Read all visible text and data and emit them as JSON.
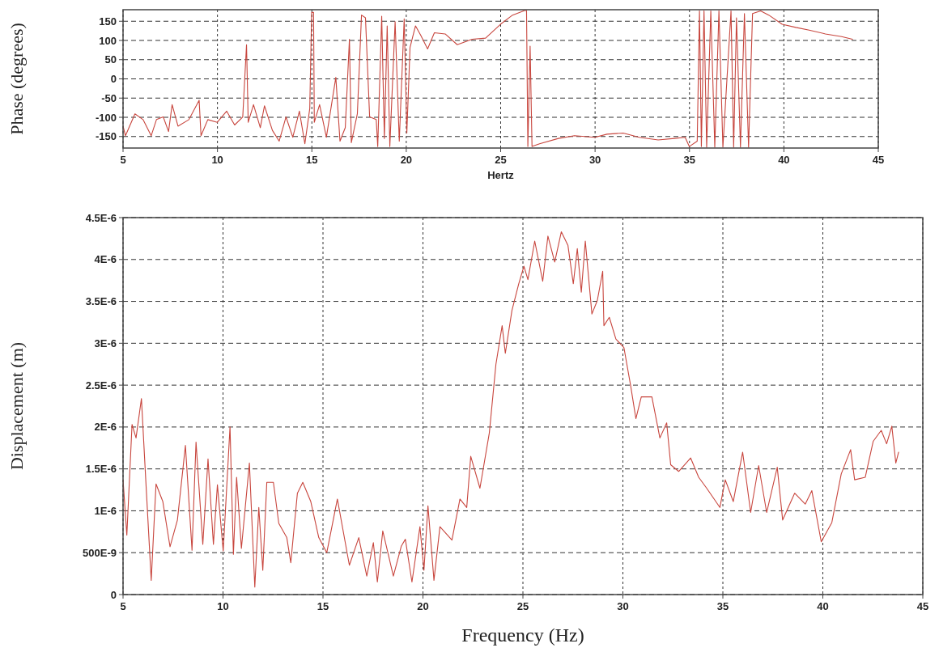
{
  "chart_data": [
    {
      "type": "line",
      "xlabel": "Hertz",
      "ylabel": "Phase (degrees)",
      "xlim": [
        5,
        45
      ],
      "ylim": [
        -180,
        180
      ],
      "xticks": [
        5,
        10,
        15,
        20,
        25,
        30,
        35,
        40,
        45
      ],
      "yticks": [
        -150,
        -100,
        -50,
        0,
        50,
        100,
        150
      ],
      "grid": true,
      "x": [
        5.0,
        5.13,
        5.63,
        6.06,
        6.49,
        6.77,
        7.13,
        7.41,
        7.6,
        7.91,
        8.49,
        9.03,
        9.13,
        9.49,
        9.99,
        10.49,
        10.91,
        11.34,
        11.54,
        11.63,
        11.91,
        12.27,
        12.49,
        12.91,
        13.27,
        13.63,
        13.99,
        14.34,
        14.63,
        14.89,
        14.99,
        15.09,
        15.13,
        15.41,
        15.77,
        16.27,
        16.49,
        16.77,
        16.99,
        17.09,
        17.41,
        17.63,
        17.84,
        18.06,
        18.41,
        18.49,
        18.7,
        18.84,
        18.99,
        19.13,
        19.41,
        19.63,
        19.89,
        20.03,
        20.2,
        20.49,
        20.77,
        21.13,
        21.49,
        22.06,
        22.7,
        23.49,
        24.2,
        24.99,
        25.63,
        26.27,
        26.37,
        26.44,
        26.56,
        26.66,
        27.06,
        28.06,
        28.91,
        29.99,
        30.63,
        31.49,
        32.34,
        33.34,
        34.2,
        34.77,
        34.99,
        35.41,
        35.53,
        35.63,
        35.77,
        35.91,
        36.13,
        36.34,
        36.56,
        36.77,
        37.2,
        37.34,
        37.49,
        37.7,
        37.91,
        38.13,
        38.34,
        38.77,
        39.2,
        39.91,
        40.63,
        41.34,
        42.2,
        43.06,
        43.63
      ],
      "series": [
        {
          "color": "#c8463e",
          "values": [
            -123,
            -148,
            -91,
            -106,
            -148,
            -106,
            -99,
            -137,
            -67,
            -123,
            -106,
            -56,
            -148,
            -106,
            -113,
            -84,
            -120,
            -99,
            89,
            -113,
            -67,
            -127,
            -70,
            -134,
            -162,
            -99,
            -152,
            -84,
            -169,
            -77,
            173,
            173,
            -113,
            -67,
            -152,
            4,
            -162,
            -127,
            103,
            -166,
            -91,
            166,
            159,
            -99,
            -106,
            -176,
            163,
            -155,
            138,
            -176,
            149,
            -162,
            156,
            -141,
            82,
            138,
            113,
            78,
            120,
            117,
            89,
            103,
            106,
            142,
            166,
            178,
            178,
            -176,
            85,
            -176,
            -169,
            -155,
            -148,
            -152,
            -144,
            -141,
            -152,
            -159,
            -155,
            -152,
            -176,
            -162,
            177,
            -176,
            177,
            -178,
            177,
            -178,
            177,
            -178,
            177,
            -178,
            159,
            -178,
            170,
            -178,
            170,
            177,
            166,
            142,
            134,
            127,
            117,
            110,
            103
          ]
        }
      ]
    },
    {
      "type": "line",
      "xlabel": "Frequency (Hz)",
      "ylabel": "Displacement (m)",
      "xlim": [
        5,
        45
      ],
      "ylim": [
        0,
        4.5e-06
      ],
      "xticks": [
        5,
        10,
        15,
        20,
        25,
        30,
        35,
        40,
        45
      ],
      "yticks": [
        0,
        {
          "value": 5e-07,
          "label": "500E-9"
        },
        {
          "value": 1e-06,
          "label": "1E-6"
        },
        {
          "value": 1.5e-06,
          "label": "1.5E-6"
        },
        {
          "value": 2e-06,
          "label": "2E-6"
        },
        {
          "value": 2.5e-06,
          "label": "2.5E-6"
        },
        {
          "value": 3e-06,
          "label": "3E-6"
        },
        {
          "value": 3.5e-06,
          "label": "3.5E-6"
        },
        {
          "value": 4e-06,
          "label": "4E-6"
        },
        {
          "value": 4.5e-06,
          "label": "4.5E-6"
        }
      ],
      "grid": true,
      "x": [
        5.0,
        5.19,
        5.45,
        5.65,
        5.92,
        6.12,
        6.41,
        6.65,
        6.99,
        7.35,
        7.72,
        8.12,
        8.45,
        8.65,
        8.99,
        9.25,
        9.52,
        9.72,
        10.01,
        10.35,
        10.52,
        10.68,
        10.92,
        11.32,
        11.59,
        11.79,
        11.99,
        12.19,
        12.52,
        12.79,
        13.19,
        13.39,
        13.72,
        13.99,
        14.39,
        14.79,
        15.19,
        15.72,
        16.32,
        16.79,
        17.19,
        17.52,
        17.72,
        17.99,
        18.52,
        18.92,
        19.12,
        19.45,
        19.85,
        20.05,
        20.25,
        20.55,
        20.85,
        21.45,
        21.85,
        22.19,
        22.39,
        22.85,
        23.32,
        23.65,
        23.96,
        24.12,
        24.45,
        24.79,
        25.05,
        25.25,
        25.59,
        25.99,
        26.25,
        26.59,
        26.92,
        27.25,
        27.52,
        27.72,
        27.92,
        28.12,
        28.45,
        28.72,
        28.99,
        29.05,
        29.32,
        29.65,
        30.05,
        30.39,
        30.65,
        30.92,
        31.45,
        31.85,
        32.19,
        32.39,
        32.79,
        33.39,
        33.79,
        34.19,
        34.85,
        35.12,
        35.52,
        35.99,
        36.39,
        36.79,
        37.19,
        37.72,
        37.99,
        38.59,
        39.12,
        39.45,
        39.92,
        40.45,
        40.92,
        41.39,
        41.59,
        42.12,
        42.52,
        42.92,
        43.19,
        43.45,
        43.65,
        43.79
      ],
      "series": [
        {
          "color": "#c8463e",
          "values": [
            1.37e-06,
            7.1e-07,
            2.03e-06,
            1.87e-06,
            2.34e-06,
            1.44e-06,
            1.7e-07,
            1.32e-06,
            1.11e-06,
            5.7e-07,
            8.9e-07,
            1.78e-06,
            5.3e-07,
            1.82e-06,
            6e-07,
            1.62e-06,
            6e-07,
            1.31e-06,
            5.2e-07,
            2e-06,
            4.8e-07,
            1.4e-06,
            5.5e-07,
            1.57e-06,
            9e-08,
            1.04e-06,
            2.9e-07,
            1.34e-06,
            1.34e-06,
            8.5e-07,
            6.8e-07,
            3.8e-07,
            1.21e-06,
            1.34e-06,
            1.11e-06,
            6.8e-07,
            5e-07,
            1.14e-06,
            3.5e-07,
            6.8e-07,
            2.2e-07,
            6.2e-07,
            1.5e-07,
            7.6e-07,
            2.2e-07,
            5.8e-07,
            6.6e-07,
            1.5e-07,
            8.1e-07,
            2.9e-07,
            1.06e-06,
            1.7e-07,
            8.1e-07,
            6.5e-07,
            1.14e-06,
            1.04e-06,
            1.65e-06,
            1.27e-06,
            1.93e-06,
            2.75e-06,
            3.21e-06,
            2.88e-06,
            3.39e-06,
            3.71e-06,
            3.92e-06,
            3.76e-06,
            4.22e-06,
            3.74e-06,
            4.28e-06,
            3.97e-06,
            4.33e-06,
            4.17e-06,
            3.71e-06,
            4.13e-06,
            3.61e-06,
            4.22e-06,
            3.35e-06,
            3.51e-06,
            3.86e-06,
            3.21e-06,
            3.31e-06,
            3.05e-06,
            2.95e-06,
            2.49e-06,
            2.1e-06,
            2.36e-06,
            2.36e-06,
            1.87e-06,
            2.05e-06,
            1.55e-06,
            1.47e-06,
            1.63e-06,
            1.4e-06,
            1.27e-06,
            1.04e-06,
            1.37e-06,
            1.11e-06,
            1.7e-06,
            9.8e-07,
            1.54e-06,
            9.8e-07,
            1.52e-06,
            8.9e-07,
            1.21e-06,
            1.08e-06,
            1.24e-06,
            6.3e-07,
            8.6e-07,
            1.44e-06,
            1.73e-06,
            1.37e-06,
            1.4e-06,
            1.83e-06,
            1.96e-06,
            1.8e-06,
            2.01e-06,
            1.57e-06,
            1.7e-06
          ]
        }
      ]
    }
  ]
}
